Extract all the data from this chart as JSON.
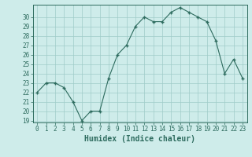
{
  "x": [
    0,
    1,
    2,
    3,
    4,
    5,
    6,
    7,
    8,
    9,
    10,
    11,
    12,
    13,
    14,
    15,
    16,
    17,
    18,
    19,
    20,
    21,
    22,
    23
  ],
  "y": [
    22.0,
    23.0,
    23.0,
    22.5,
    21.0,
    19.0,
    20.0,
    20.0,
    23.5,
    26.0,
    27.0,
    29.0,
    30.0,
    29.5,
    29.5,
    30.5,
    31.0,
    30.5,
    30.0,
    29.5,
    27.5,
    24.0,
    25.5,
    23.5
  ],
  "line_color": "#2d6b5e",
  "marker_color": "#2d6b5e",
  "bg_color": "#ceecea",
  "grid_color": "#a0ccc8",
  "xlabel": "Humidex (Indice chaleur)",
  "ylim": [
    19,
    31
  ],
  "xlim": [
    -0.5,
    23.5
  ],
  "yticks": [
    19,
    20,
    21,
    22,
    23,
    24,
    25,
    26,
    27,
    28,
    29,
    30
  ],
  "xticks": [
    0,
    1,
    2,
    3,
    4,
    5,
    6,
    7,
    8,
    9,
    10,
    11,
    12,
    13,
    14,
    15,
    16,
    17,
    18,
    19,
    20,
    21,
    22,
    23
  ],
  "tick_fontsize": 5.5,
  "label_fontsize": 7.0
}
